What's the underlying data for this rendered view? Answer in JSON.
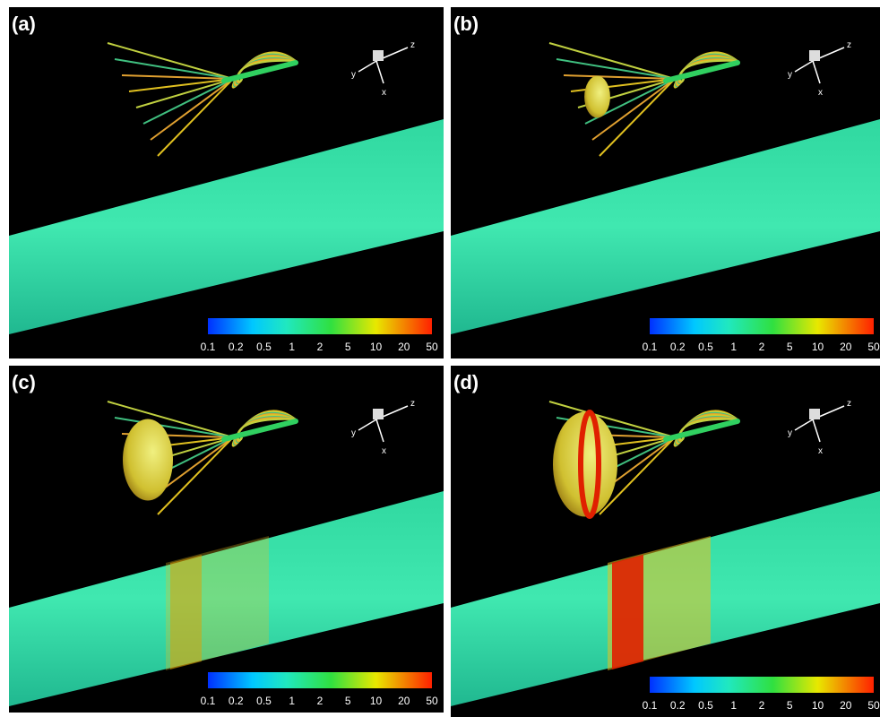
{
  "panels": [
    {
      "label": "(a)"
    },
    {
      "label": "(b)"
    },
    {
      "label": "(c)"
    },
    {
      "label": "(d)"
    }
  ],
  "colorbar_ticks": [
    "0.1",
    "0.2",
    "0.5",
    "1",
    "2",
    "5",
    "10",
    "20",
    "50"
  ],
  "axes": {
    "z": "z",
    "x": "x",
    "y": "y"
  }
}
